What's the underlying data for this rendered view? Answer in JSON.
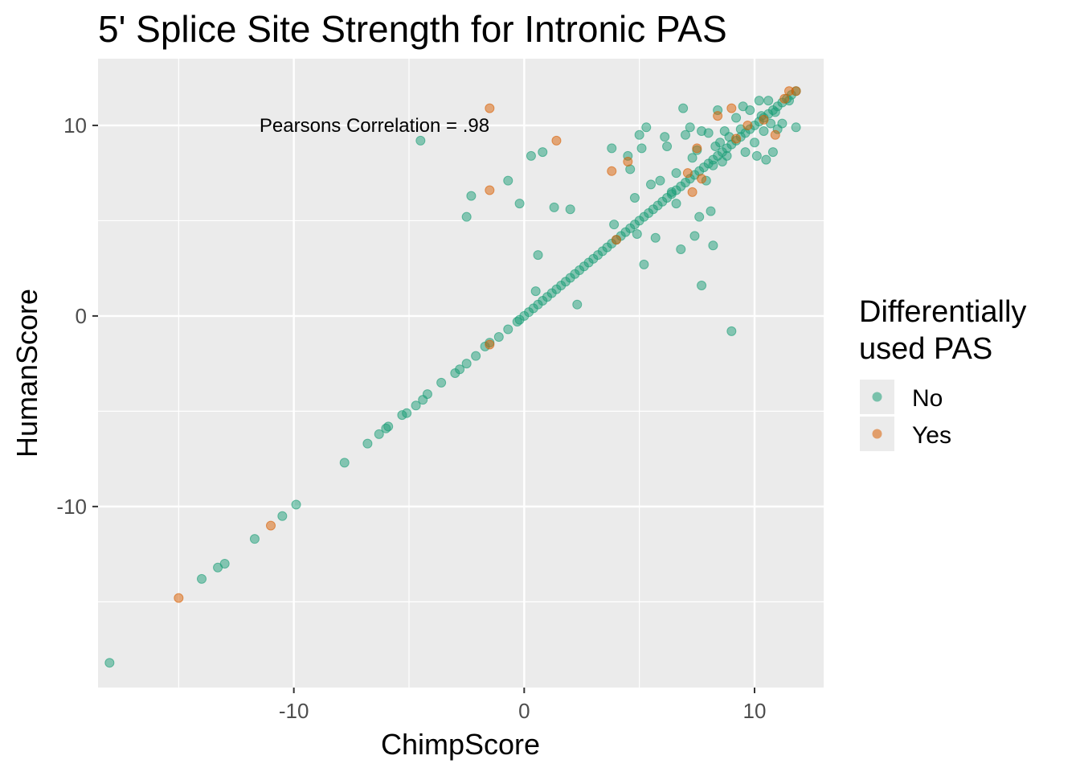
{
  "chart_data": {
    "type": "scatter",
    "title": "5' Splice Site Strength for Intronic PAS",
    "xlabel": "ChimpScore",
    "ylabel": "HumanScore",
    "xlim": [
      -18.5,
      13
    ],
    "ylim": [
      -19.5,
      13.5
    ],
    "x_ticks": [
      -10,
      0,
      10
    ],
    "y_ticks": [
      -10,
      0,
      10
    ],
    "x_tick_labels": [
      "-10",
      "0",
      "10"
    ],
    "y_tick_labels": [
      "-10",
      "0",
      "10"
    ],
    "grid": true,
    "annotation": {
      "text": "Pearsons Correlation = .98",
      "x": -6.5,
      "y": 10
    },
    "legend": {
      "title_lines": [
        "Differentially",
        "used PAS"
      ],
      "placement": "right",
      "entries": [
        "No",
        "Yes"
      ]
    },
    "colors": {
      "No": "#1b9e77",
      "Yes": "#d95f02",
      "panel": "#ebebeb",
      "grid": "#ffffff"
    },
    "series": [
      {
        "name": "No",
        "points": [
          [
            -18,
            -18.2
          ],
          [
            -14,
            -13.8
          ],
          [
            -13.3,
            -13.2
          ],
          [
            -13,
            -13
          ],
          [
            -11.7,
            -11.7
          ],
          [
            -10.5,
            -10.5
          ],
          [
            -9.9,
            -9.9
          ],
          [
            -7.8,
            -7.7
          ],
          [
            -6.8,
            -6.7
          ],
          [
            -6.3,
            -6.2
          ],
          [
            -6,
            -5.9
          ],
          [
            -5.9,
            -5.8
          ],
          [
            -5.3,
            -5.2
          ],
          [
            -5.1,
            -5.1
          ],
          [
            -4.7,
            -4.7
          ],
          [
            -4.4,
            -4.4
          ],
          [
            -4.2,
            -4.1
          ],
          [
            -3.6,
            -3.5
          ],
          [
            -3,
            -3
          ],
          [
            -2.8,
            -2.8
          ],
          [
            -2.5,
            -2.5
          ],
          [
            -2.1,
            -2.1
          ],
          [
            -1.7,
            -1.6
          ],
          [
            -1.5,
            -1.4
          ],
          [
            -1.1,
            -1.1
          ],
          [
            -0.7,
            -0.7
          ],
          [
            -0.3,
            -0.3
          ],
          [
            -0.2,
            -0.2
          ],
          [
            0,
            0
          ],
          [
            0.2,
            0.2
          ],
          [
            0.4,
            0.4
          ],
          [
            0.6,
            0.6
          ],
          [
            0.8,
            0.8
          ],
          [
            1,
            1
          ],
          [
            1.2,
            1.2
          ],
          [
            1.4,
            1.4
          ],
          [
            1.6,
            1.6
          ],
          [
            1.8,
            1.8
          ],
          [
            2,
            2
          ],
          [
            2.2,
            2.2
          ],
          [
            2.4,
            2.4
          ],
          [
            2.6,
            2.6
          ],
          [
            2.8,
            2.8
          ],
          [
            3,
            3
          ],
          [
            3.2,
            3.2
          ],
          [
            3.4,
            3.4
          ],
          [
            3.6,
            3.6
          ],
          [
            3.8,
            3.8
          ],
          [
            4,
            4
          ],
          [
            4.2,
            4.2
          ],
          [
            4.4,
            4.4
          ],
          [
            4.6,
            4.6
          ],
          [
            4.8,
            4.8
          ],
          [
            5,
            5
          ],
          [
            5.2,
            5.2
          ],
          [
            5.4,
            5.4
          ],
          [
            5.6,
            5.6
          ],
          [
            5.8,
            5.8
          ],
          [
            6,
            6
          ],
          [
            6.2,
            6.2
          ],
          [
            6.4,
            6.4
          ],
          [
            6.6,
            6.6
          ],
          [
            6.8,
            6.8
          ],
          [
            7,
            7
          ],
          [
            7.2,
            7.2
          ],
          [
            7.4,
            7.4
          ],
          [
            7.6,
            7.6
          ],
          [
            7.8,
            7.8
          ],
          [
            8,
            8
          ],
          [
            8.2,
            8.2
          ],
          [
            8.4,
            8.4
          ],
          [
            8.6,
            8.6
          ],
          [
            8.8,
            8.8
          ],
          [
            9,
            9
          ],
          [
            9.2,
            9.2
          ],
          [
            9.4,
            9.4
          ],
          [
            9.6,
            9.6
          ],
          [
            9.8,
            9.8
          ],
          [
            10,
            10
          ],
          [
            10.2,
            10.2
          ],
          [
            10.4,
            10.4
          ],
          [
            10.6,
            10.6
          ],
          [
            10.8,
            10.8
          ],
          [
            11,
            11
          ],
          [
            11.2,
            11.2
          ],
          [
            11.4,
            11.4
          ],
          [
            11.6,
            11.6
          ],
          [
            11.8,
            11.8
          ],
          [
            -4.5,
            9.2
          ],
          [
            -2.3,
            6.3
          ],
          [
            -2.5,
            5.2
          ],
          [
            -0.7,
            7.1
          ],
          [
            -0.2,
            5.9
          ],
          [
            0.3,
            8.4
          ],
          [
            0.8,
            8.6
          ],
          [
            1.3,
            5.7
          ],
          [
            2,
            5.6
          ],
          [
            0.6,
            3.2
          ],
          [
            0.5,
            1.3
          ],
          [
            2.3,
            0.6
          ],
          [
            3.8,
            8.8
          ],
          [
            4.5,
            8.4
          ],
          [
            4.6,
            7.7
          ],
          [
            5,
            9.5
          ],
          [
            5.1,
            8.8
          ],
          [
            5.3,
            9.9
          ],
          [
            5.5,
            6.9
          ],
          [
            5.7,
            4.1
          ],
          [
            5.9,
            7.1
          ],
          [
            6.1,
            9.4
          ],
          [
            6.2,
            8.9
          ],
          [
            6.4,
            6.5
          ],
          [
            6.6,
            5.9
          ],
          [
            6.8,
            3.5
          ],
          [
            6.9,
            10.9
          ],
          [
            7,
            9.5
          ],
          [
            7.2,
            9.9
          ],
          [
            7.3,
            8.3
          ],
          [
            7.4,
            4.2
          ],
          [
            7.5,
            8.7
          ],
          [
            7.6,
            5.2
          ],
          [
            7.7,
            9.7
          ],
          [
            7.9,
            7.1
          ],
          [
            8,
            9.6
          ],
          [
            8.1,
            5.5
          ],
          [
            8.2,
            7.9
          ],
          [
            8.3,
            8.9
          ],
          [
            8.4,
            10.8
          ],
          [
            8.5,
            9.1
          ],
          [
            8.6,
            8.1
          ],
          [
            8.7,
            9.7
          ],
          [
            8.8,
            8.4
          ],
          [
            8.9,
            9.4
          ],
          [
            9,
            -0.8
          ],
          [
            9.2,
            10.4
          ],
          [
            9.4,
            9.8
          ],
          [
            9.5,
            11
          ],
          [
            9.6,
            8.6
          ],
          [
            9.8,
            10.8
          ],
          [
            10,
            9.1
          ],
          [
            10.1,
            8.4
          ],
          [
            10.2,
            11.3
          ],
          [
            10.3,
            10.5
          ],
          [
            10.4,
            9.7
          ],
          [
            10.5,
            8.2
          ],
          [
            10.6,
            11.3
          ],
          [
            10.7,
            10.1
          ],
          [
            10.8,
            8.6
          ],
          [
            10.9,
            10.7
          ],
          [
            11,
            9.8
          ],
          [
            11.2,
            10.1
          ],
          [
            11.5,
            11.3
          ],
          [
            11.8,
            9.9
          ],
          [
            5.2,
            2.7
          ],
          [
            4.9,
            4.3
          ],
          [
            7.7,
            1.6
          ],
          [
            8.2,
            3.7
          ],
          [
            3.9,
            4.8
          ],
          [
            4.8,
            6.2
          ],
          [
            6.6,
            7.5
          ]
        ]
      },
      {
        "name": "Yes",
        "points": [
          [
            -15,
            -14.8
          ],
          [
            -11,
            -11
          ],
          [
            -1.5,
            -1.5
          ],
          [
            -1.5,
            10.9
          ],
          [
            -1.5,
            6.6
          ],
          [
            1.4,
            9.2
          ],
          [
            3.8,
            7.6
          ],
          [
            4,
            4
          ],
          [
            4.5,
            8.1
          ],
          [
            7.1,
            7.5
          ],
          [
            7.3,
            6.5
          ],
          [
            7.5,
            8.8
          ],
          [
            7.7,
            7.2
          ],
          [
            8.4,
            10.5
          ],
          [
            9,
            10.9
          ],
          [
            9.2,
            9.3
          ],
          [
            9.7,
            10
          ],
          [
            10.9,
            9.5
          ],
          [
            11.3,
            11.4
          ],
          [
            11.5,
            11.8
          ],
          [
            11.8,
            11.8
          ],
          [
            10.4,
            10.3
          ]
        ]
      }
    ]
  }
}
